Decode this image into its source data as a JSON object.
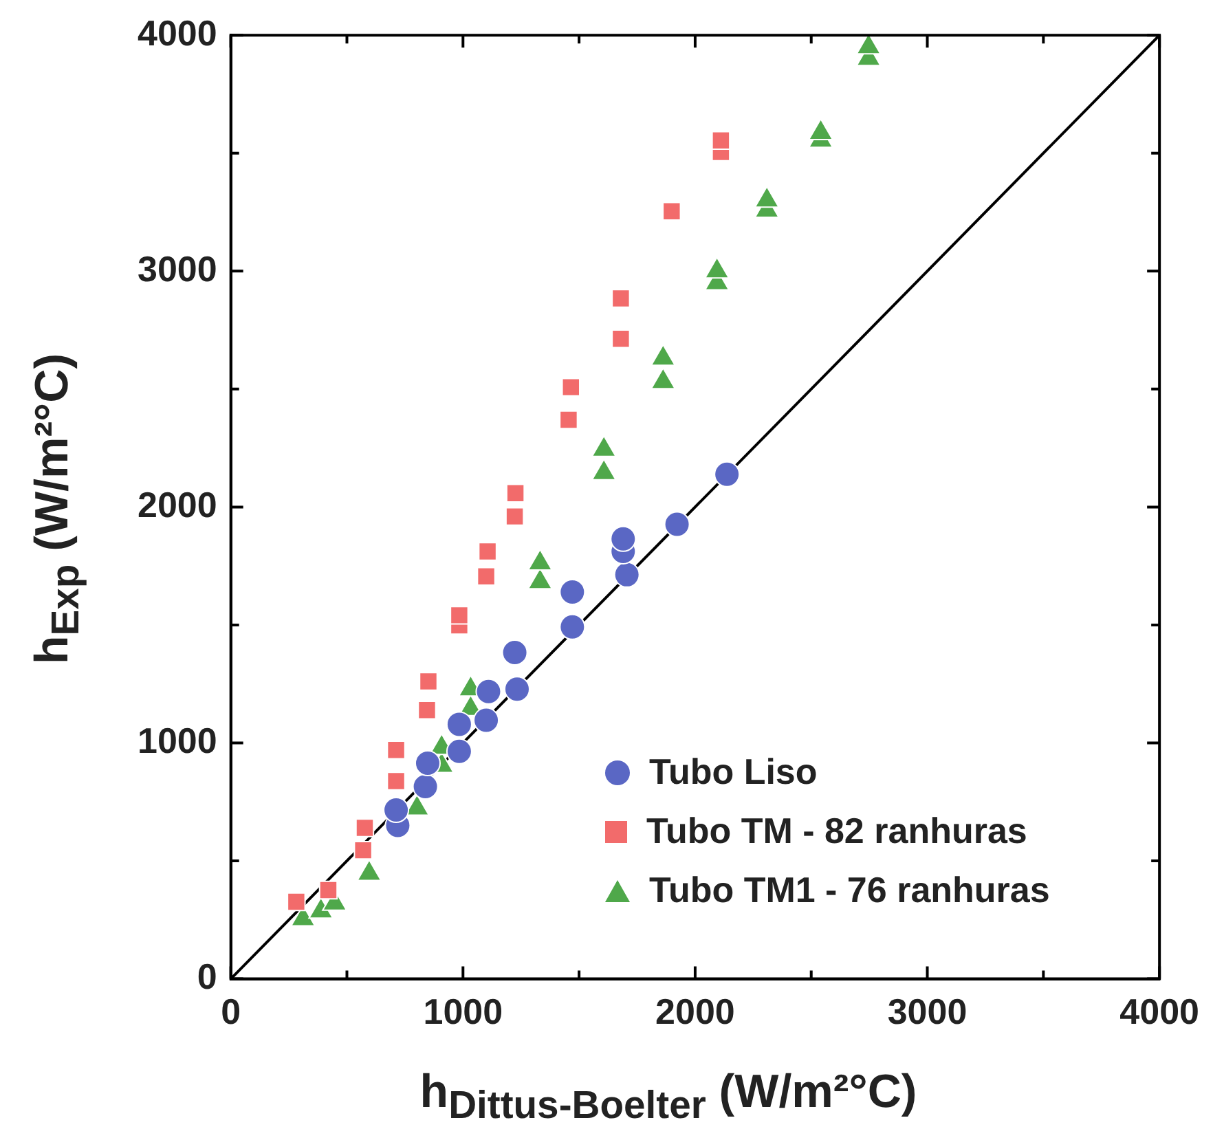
{
  "chart_data": {
    "type": "scatter",
    "xlabel": "h$_{Dittus-Boelter}$ (W/m²°C)",
    "ylabel": "h$_{Exp}$ (W/m²°C)",
    "xlim": [
      0,
      4000
    ],
    "ylim": [
      0,
      4000
    ],
    "xticks": [
      0,
      {
        "value": 500,
        "label": null
      },
      1000,
      {
        "value": 1500,
        "label": null
      },
      2000,
      {
        "value": 2500,
        "label": null
      },
      3000,
      {
        "value": 3500,
        "label": null
      },
      4000
    ],
    "yticks": [
      0,
      {
        "value": 500,
        "label": null
      },
      1000,
      {
        "value": 1500,
        "label": null
      },
      2000,
      {
        "value": 2500,
        "label": null
      },
      3000,
      {
        "value": 3500,
        "label": null
      },
      4000
    ],
    "grid": false,
    "legend": "bottom right",
    "series": [
      {
        "name": "Tubo Liso",
        "color": "#5a67c4",
        "marker": "circle",
        "x": [
          719,
          712,
          838,
          848,
          984,
          984,
          1100,
          1110,
          1233,
          1223,
          1471,
          1471,
          1706,
          1690,
          1690,
          1922,
          2137
        ],
        "values": [
          650,
          716,
          815,
          914,
          964,
          1079,
          1096,
          1218,
          1228,
          1383,
          1492,
          1640,
          1713,
          1812,
          1865,
          1927,
          2139
        ]
      },
      {
        "name": "Tubo TM - 82 ranhuras",
        "color": "#f26b6b",
        "marker": "square",
        "x": [
          282,
          420,
          570,
          577,
          712,
          712,
          845,
          851,
          984,
          984,
          1100,
          1106,
          1223,
          1226,
          1455,
          1465,
          1680,
          1680,
          1899,
          2111,
          2111
        ],
        "values": [
          327,
          376,
          545,
          640,
          838,
          970,
          1139,
          1261,
          1498,
          1541,
          1706,
          1812,
          1960,
          2059,
          2370,
          2508,
          2713,
          2884,
          3254,
          3505,
          3554
        ]
      },
      {
        "name": "Tubo TM1 - 76 ranhuras",
        "color": "#4fa84a",
        "marker": "triangle",
        "x": [
          311,
          388,
          447,
          596,
          802,
          908,
          908,
          1033,
          1033,
          1332,
          1332,
          1607,
          1607,
          1862,
          1862,
          2094,
          2094,
          2309,
          2309,
          2541,
          2541,
          2747,
          2747
        ],
        "values": [
          254,
          287,
          320,
          446,
          723,
          904,
          980,
          1145,
          1228,
          1683,
          1762,
          2145,
          2244,
          2531,
          2630,
          2950,
          3000,
          3257,
          3300,
          3554,
          3587,
          3901,
          3950
        ]
      },
      {
        "type": "line",
        "color": "#000000",
        "marker": "none",
        "x": [
          0,
          4000
        ],
        "values": [
          0,
          4000
        ]
      }
    ]
  }
}
